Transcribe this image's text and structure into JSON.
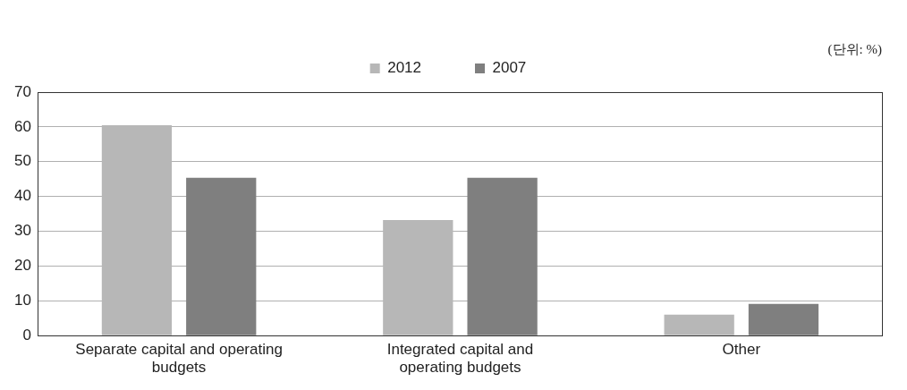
{
  "chart_data": {
    "type": "bar",
    "categories": [
      "Separate capital and operating budgets",
      "Integrated capital and operating budgets",
      "Other"
    ],
    "series": [
      {
        "name": "2012",
        "color": "#b7b7b7",
        "values": [
          60.5,
          33.2,
          6
        ]
      },
      {
        "name": "2007",
        "color": "#7f7f7f",
        "values": [
          45.4,
          45.4,
          9.1
        ]
      }
    ],
    "ylim": [
      0,
      70
    ],
    "yticks": [
      0,
      10,
      20,
      30,
      40,
      50,
      60,
      70
    ],
    "grid": "y",
    "legend": "top",
    "annotations": [
      "(단위: %)"
    ]
  }
}
